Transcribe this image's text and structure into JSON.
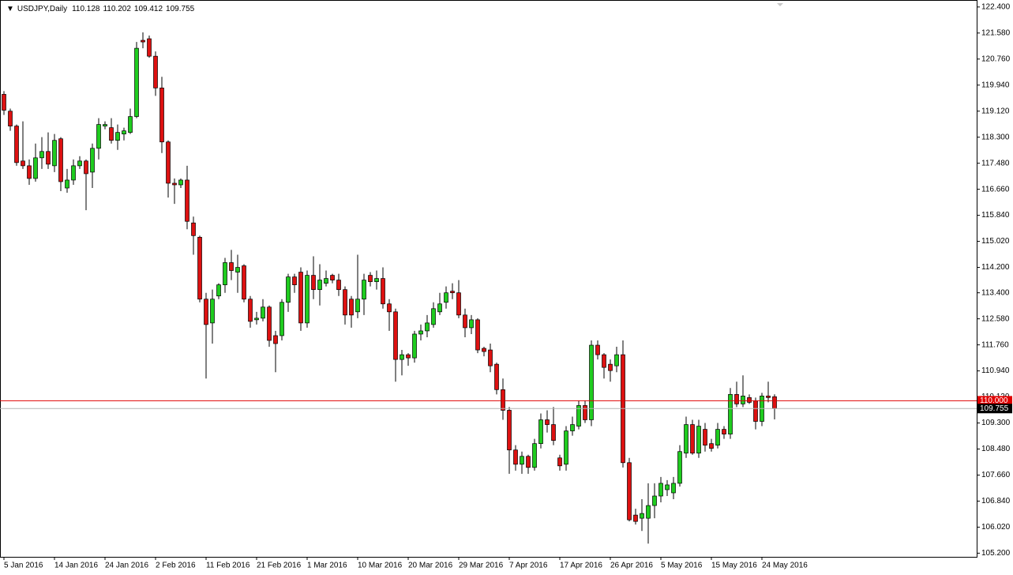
{
  "chart_data": {
    "type": "candlestick",
    "title": "USDJPY,Daily",
    "up_color": "#1fcc1f",
    "down_color": "#dd1111",
    "categories": [
      "5 Jan 2016",
      null,
      null,
      null,
      null,
      null,
      null,
      null,
      "14 Jan 2016",
      null,
      null,
      null,
      null,
      null,
      null,
      null,
      "24 Jan 2016",
      null,
      null,
      null,
      null,
      null,
      null,
      null,
      "2 Feb 2016",
      null,
      null,
      null,
      null,
      null,
      null,
      null,
      "11 Feb 2016",
      null,
      null,
      null,
      null,
      null,
      null,
      null,
      "21 Feb 2016",
      null,
      null,
      null,
      null,
      null,
      null,
      null,
      "1 Mar 2016",
      null,
      null,
      null,
      null,
      null,
      null,
      null,
      "10 Mar 2016",
      null,
      null,
      null,
      null,
      null,
      null,
      null,
      "20 Mar 2016",
      null,
      null,
      null,
      null,
      null,
      null,
      null,
      "29 Mar 2016",
      null,
      null,
      null,
      null,
      null,
      null,
      null,
      "7 Apr 2016",
      null,
      null,
      null,
      null,
      null,
      null,
      null,
      "17 Apr 2016",
      null,
      null,
      null,
      null,
      null,
      null,
      null,
      "26 Apr 2016",
      null,
      null,
      null,
      null,
      null,
      null,
      null,
      "5 May 2016",
      null,
      null,
      null,
      null,
      null,
      null,
      null,
      "15 May 2016",
      null,
      null,
      null,
      null,
      null,
      null,
      null,
      "24 May 2016",
      null,
      null
    ],
    "open": [
      119.65,
      119.12,
      118.65,
      117.55,
      117.4,
      117.0,
      117.65,
      117.85,
      117.4,
      118.25,
      116.7,
      116.95,
      117.4,
      117.55,
      117.2,
      117.95,
      118.65,
      118.6,
      118.2,
      118.4,
      118.45,
      118.95,
      121.35,
      121.4,
      120.85,
      119.85,
      118.15,
      116.85,
      116.8,
      116.95,
      115.6,
      115.15,
      113.2,
      112.45,
      113.3,
      113.65,
      114.35,
      114.05,
      114.25,
      113.2,
      112.55,
      112.6,
      112.95,
      112.05,
      112.05,
      113.1,
      113.9,
      114.05,
      112.45,
      113.95,
      113.5,
      113.7,
      113.95,
      113.8,
      113.5,
      113.2,
      112.8,
      113.2,
      113.95,
      113.75,
      113.85,
      113.05,
      112.8,
      111.3,
      111.45,
      111.35,
      112.1,
      112.2,
      112.4,
      112.8,
      113.1,
      113.45,
      113.4,
      112.7,
      112.3,
      112.55,
      111.65,
      111.6,
      111.15,
      110.35,
      109.7,
      108.45,
      108.0,
      108.25,
      107.9,
      108.65,
      109.4,
      109.25,
      108.2,
      108.0,
      109.05,
      109.2,
      109.85,
      109.4,
      111.75,
      111.45,
      111.15,
      111.1,
      111.45,
      108.05,
      106.4,
      106.3,
      106.3,
      106.7,
      107.0,
      107.2,
      107.1,
      107.4,
      108.35,
      109.25,
      108.35,
      109.1,
      108.65,
      108.6,
      109.1,
      108.95,
      110.2,
      109.9,
      110.1,
      110.0,
      109.35,
      110.15,
      110.128
    ],
    "high": [
      119.75,
      119.2,
      118.7,
      118.8,
      117.6,
      118.1,
      118.3,
      118.45,
      118.4,
      118.3,
      117.3,
      117.6,
      117.7,
      117.6,
      118.1,
      118.9,
      118.8,
      118.9,
      118.7,
      118.6,
      119.2,
      121.3,
      121.6,
      121.5,
      121.0,
      120.2,
      118.2,
      117.0,
      117.0,
      117.4,
      115.8,
      115.2,
      113.4,
      113.5,
      113.7,
      114.5,
      114.75,
      114.6,
      114.3,
      113.3,
      112.8,
      113.2,
      113.0,
      112.2,
      113.2,
      114.0,
      114.0,
      114.2,
      114.1,
      114.55,
      114.3,
      114.1,
      114.0,
      114.0,
      113.6,
      113.3,
      114.6,
      114.0,
      114.05,
      114.1,
      114.2,
      113.2,
      112.9,
      111.6,
      111.5,
      112.2,
      112.4,
      112.7,
      113.1,
      113.4,
      113.6,
      113.7,
      113.8,
      112.9,
      112.7,
      112.6,
      111.7,
      111.8,
      111.2,
      110.7,
      109.8,
      108.6,
      108.4,
      108.3,
      108.8,
      109.6,
      109.7,
      109.8,
      108.3,
      109.2,
      109.5,
      110.0,
      110.0,
      111.9,
      111.9,
      111.5,
      111.3,
      111.7,
      111.9,
      108.2,
      106.6,
      106.9,
      107.4,
      107.4,
      107.6,
      107.5,
      107.6,
      108.6,
      109.5,
      109.4,
      109.4,
      109.3,
      108.8,
      109.3,
      109.2,
      110.4,
      110.6,
      110.8,
      110.2,
      110.1,
      110.25,
      110.6,
      110.202
    ],
    "low": [
      119.0,
      118.5,
      117.4,
      117.3,
      116.8,
      116.9,
      117.3,
      117.3,
      117.2,
      116.6,
      116.55,
      116.8,
      117.3,
      116.0,
      116.7,
      117.6,
      118.55,
      118.1,
      117.9,
      118.2,
      118.4,
      118.9,
      121.1,
      120.8,
      119.6,
      117.8,
      116.4,
      116.2,
      116.7,
      115.4,
      114.6,
      113.1,
      110.7,
      111.8,
      113.2,
      113.4,
      113.8,
      113.4,
      113.1,
      112.3,
      112.4,
      112.5,
      111.7,
      110.9,
      111.9,
      112.8,
      113.4,
      112.2,
      112.3,
      113.2,
      113.0,
      113.6,
      113.7,
      113.3,
      112.4,
      112.3,
      112.6,
      112.7,
      113.6,
      113.5,
      112.9,
      112.2,
      110.6,
      110.8,
      111.1,
      111.2,
      111.9,
      112.0,
      112.3,
      112.7,
      112.9,
      113.2,
      112.6,
      112.0,
      112.1,
      111.5,
      111.4,
      110.9,
      110.2,
      109.4,
      107.7,
      107.8,
      107.7,
      107.7,
      107.8,
      108.5,
      109.0,
      108.6,
      107.8,
      107.8,
      108.9,
      109.1,
      109.3,
      109.2,
      111.3,
      110.7,
      110.6,
      110.9,
      107.9,
      106.2,
      106.1,
      105.9,
      105.5,
      106.3,
      106.8,
      107.0,
      106.9,
      107.3,
      108.2,
      108.3,
      108.2,
      108.4,
      108.4,
      108.5,
      108.8,
      108.8,
      109.8,
      109.8,
      109.9,
      109.1,
      109.2,
      109.95,
      109.412
    ],
    "close": [
      119.15,
      118.65,
      117.5,
      117.4,
      117.0,
      117.65,
      117.85,
      117.45,
      118.2,
      116.9,
      116.95,
      117.4,
      117.55,
      117.15,
      117.95,
      118.7,
      118.7,
      118.2,
      118.45,
      118.5,
      118.95,
      121.1,
      121.3,
      120.85,
      119.85,
      118.15,
      116.85,
      116.8,
      116.95,
      115.65,
      115.2,
      113.2,
      112.4,
      113.2,
      113.65,
      114.35,
      114.1,
      114.2,
      113.2,
      112.5,
      112.6,
      112.95,
      111.9,
      111.8,
      113.1,
      113.9,
      113.65,
      112.45,
      113.95,
      113.5,
      113.8,
      113.85,
      113.8,
      113.5,
      112.7,
      112.7,
      113.2,
      113.8,
      113.75,
      113.85,
      113.05,
      112.8,
      111.3,
      111.45,
      111.35,
      112.1,
      112.2,
      112.45,
      112.9,
      113.05,
      113.4,
      113.4,
      112.7,
      112.3,
      112.55,
      111.6,
      111.55,
      111.1,
      110.35,
      109.7,
      108.45,
      108.0,
      108.25,
      107.9,
      108.65,
      109.4,
      109.25,
      108.75,
      107.95,
      109.05,
      109.25,
      109.85,
      109.4,
      111.75,
      111.45,
      111.05,
      110.95,
      111.45,
      108.05,
      106.25,
      106.2,
      106.45,
      106.7,
      107.0,
      107.4,
      107.35,
      107.4,
      108.4,
      109.25,
      108.35,
      109.2,
      108.6,
      108.5,
      109.1,
      108.95,
      110.2,
      109.9,
      110.15,
      109.95,
      109.35,
      110.15,
      110.1,
      109.755
    ],
    "ylim": [
      105.06,
      122.62
    ],
    "yticks": [
      {
        "value": 122.4,
        "label": "122.400"
      },
      {
        "value": 121.58,
        "label": "121.580"
      },
      {
        "value": 120.76,
        "label": "120.760"
      },
      {
        "value": 119.94,
        "label": "119.940"
      },
      {
        "value": 119.12,
        "label": "119.120"
      },
      {
        "value": 118.3,
        "label": "118.300"
      },
      {
        "value": 117.48,
        "label": "117.480"
      },
      {
        "value": 116.66,
        "label": "116.660"
      },
      {
        "value": 115.84,
        "label": "115.840"
      },
      {
        "value": 115.02,
        "label": "115.020"
      },
      {
        "value": 114.2,
        "label": "114.200"
      },
      {
        "value": 113.4,
        "label": "113.400"
      },
      {
        "value": 112.58,
        "label": "112.580"
      },
      {
        "value": 111.76,
        "label": "111.760"
      },
      {
        "value": 110.94,
        "label": "110.940"
      },
      {
        "value": 110.12,
        "label": "110.120"
      },
      {
        "value": 109.3,
        "label": "109.300"
      },
      {
        "value": 108.48,
        "label": "108.480"
      },
      {
        "value": 107.66,
        "label": "107.660"
      },
      {
        "value": 106.84,
        "label": "106.840"
      },
      {
        "value": 106.02,
        "label": "106.020"
      },
      {
        "value": 105.2,
        "label": "105.200"
      }
    ],
    "level": {
      "value": 110,
      "label": "110.000",
      "color": "#e00000"
    },
    "grid": false
  }
}
